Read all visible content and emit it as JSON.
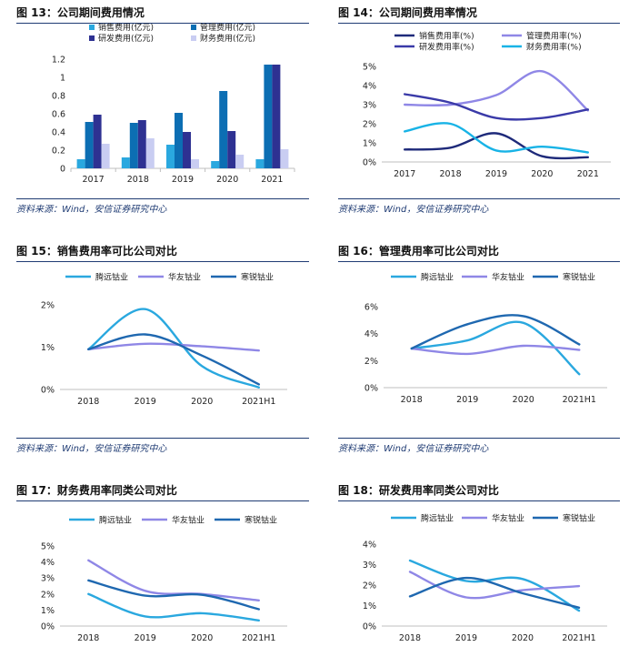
{
  "colors": {
    "sales": "#2aa8df",
    "mgmt": "#0c6eb3",
    "rd": "#2e3192",
    "fin": "#c9cdf2",
    "l_sales": "#1e2a7a",
    "l_mgmt": "#8f87e6",
    "l_rd": "#3a3aa8",
    "l_fin": "#18b3e6",
    "tengyuan": "#2aa8df",
    "huayou": "#8f87e6",
    "hanrui": "#1f68b0",
    "rule": "#1f3b73"
  },
  "panels": [
    {
      "title": "图 13：公司期间费用情况",
      "source": "资料来源：Wind，安信证券研究中心"
    },
    {
      "title": "图 14：公司期间费用率情况",
      "source": "资料来源：Wind，安信证券研究中心"
    },
    {
      "title": "图 15：销售费用率可比公司对比",
      "source": "资料来源：Wind，安信证券研究中心"
    },
    {
      "title": "图 16：管理费用率可比公司对比",
      "source": "资料来源：Wind，安信证券研究中心"
    },
    {
      "title": "图 17：财务费用率同类公司对比"
    },
    {
      "title": "图 18：研发费用率同类公司对比"
    }
  ],
  "chart_data": [
    {
      "type": "bar",
      "title": "公司期间费用情况",
      "categories": [
        "2017",
        "2018",
        "2019",
        "2020",
        "2021"
      ],
      "ylim": [
        0,
        1.2
      ],
      "yticks": [
        "0",
        "0.2",
        "0.4",
        "0.6",
        "0.8",
        "1",
        "1.2"
      ],
      "series": [
        {
          "name": "销售费用(亿元)",
          "color": "#2aa8df",
          "values": [
            0.1,
            0.12,
            0.26,
            0.08,
            0.1
          ]
        },
        {
          "name": "管理费用(亿元)",
          "color": "#0c6eb3",
          "values": [
            0.51,
            0.5,
            0.61,
            0.85,
            1.14
          ]
        },
        {
          "name": "研发费用(亿元)",
          "color": "#2e3192",
          "values": [
            0.59,
            0.53,
            0.4,
            0.41,
            1.14
          ]
        },
        {
          "name": "财务费用(亿元)",
          "color": "#c9cdf2",
          "values": [
            0.27,
            0.33,
            0.1,
            0.15,
            0.21
          ]
        }
      ]
    },
    {
      "type": "line",
      "title": "公司期间费用率情况",
      "categories": [
        "2017",
        "2018",
        "2019",
        "2020",
        "2021"
      ],
      "ylim": [
        0,
        5
      ],
      "yticks": [
        "0%",
        "1%",
        "2%",
        "3%",
        "4%",
        "5%"
      ],
      "series": [
        {
          "name": "销售费用率(%)",
          "color": "#1e2a7a",
          "values": [
            0.65,
            0.75,
            1.5,
            0.3,
            0.25
          ]
        },
        {
          "name": "管理费用率(%)",
          "color": "#8f87e6",
          "values": [
            3.0,
            3.0,
            3.5,
            4.75,
            2.7
          ]
        },
        {
          "name": "研发费用率(%)",
          "color": "#3a3aa8",
          "values": [
            3.55,
            3.1,
            2.3,
            2.3,
            2.75
          ]
        },
        {
          "name": "财务费用率(%)",
          "color": "#18b3e6",
          "values": [
            1.6,
            2.0,
            0.6,
            0.8,
            0.5
          ]
        }
      ]
    },
    {
      "type": "line",
      "title": "销售费用率可比公司对比",
      "categories": [
        "2018",
        "2019",
        "2020",
        "2021H1"
      ],
      "ylim": [
        0,
        2
      ],
      "yticks": [
        "0%",
        "1%",
        "2%"
      ],
      "series": [
        {
          "name": "腾远钴业",
          "color": "#2aa8df",
          "values": [
            0.95,
            1.9,
            0.55,
            0.05
          ]
        },
        {
          "name": "华友钴业",
          "color": "#8f87e6",
          "values": [
            0.95,
            1.08,
            1.02,
            0.92
          ]
        },
        {
          "name": "寒锐钴业",
          "color": "#1f68b0",
          "values": [
            0.95,
            1.3,
            0.8,
            0.12
          ]
        }
      ]
    },
    {
      "type": "line",
      "title": "管理费用率可比公司对比",
      "categories": [
        "2018",
        "2019",
        "2020",
        "2021H1"
      ],
      "ylim": [
        0,
        6
      ],
      "yticks": [
        "0%",
        "2%",
        "4%",
        "6%"
      ],
      "series": [
        {
          "name": "腾远钴业",
          "color": "#2aa8df",
          "values": [
            2.9,
            3.5,
            4.8,
            1.0
          ]
        },
        {
          "name": "华友钴业",
          "color": "#8f87e6",
          "values": [
            2.9,
            2.5,
            3.1,
            2.8
          ]
        },
        {
          "name": "寒锐钴业",
          "color": "#1f68b0",
          "values": [
            2.9,
            4.7,
            5.3,
            3.2
          ]
        }
      ]
    },
    {
      "type": "line",
      "title": "财务费用率同类公司对比",
      "categories": [
        "2018",
        "2019",
        "2020",
        "2021H1"
      ],
      "ylim": [
        0,
        5
      ],
      "yticks": [
        "0%",
        "1%",
        "2%",
        "3%",
        "4%",
        "5%"
      ],
      "series": [
        {
          "name": "腾远钴业",
          "color": "#2aa8df",
          "values": [
            2.0,
            0.6,
            0.8,
            0.35
          ]
        },
        {
          "name": "华友钴业",
          "color": "#8f87e6",
          "values": [
            4.1,
            2.2,
            2.0,
            1.6
          ]
        },
        {
          "name": "寒锐钴业",
          "color": "#1f68b0",
          "values": [
            2.85,
            1.9,
            1.95,
            1.05
          ]
        }
      ]
    },
    {
      "type": "line",
      "title": "研发费用率同类公司对比",
      "categories": [
        "2018",
        "2019",
        "2020",
        "2021H1"
      ],
      "ylim": [
        0,
        4
      ],
      "yticks": [
        "0%",
        "1%",
        "2%",
        "3%",
        "4%"
      ],
      "series": [
        {
          "name": "腾远钴业",
          "color": "#2aa8df",
          "values": [
            3.2,
            2.2,
            2.3,
            0.75
          ]
        },
        {
          "name": "华友钴业",
          "color": "#8f87e6",
          "values": [
            2.65,
            1.4,
            1.75,
            1.95
          ]
        },
        {
          "name": "寒锐钴业",
          "color": "#1f68b0",
          "values": [
            1.45,
            2.35,
            1.6,
            0.9
          ]
        }
      ]
    }
  ]
}
